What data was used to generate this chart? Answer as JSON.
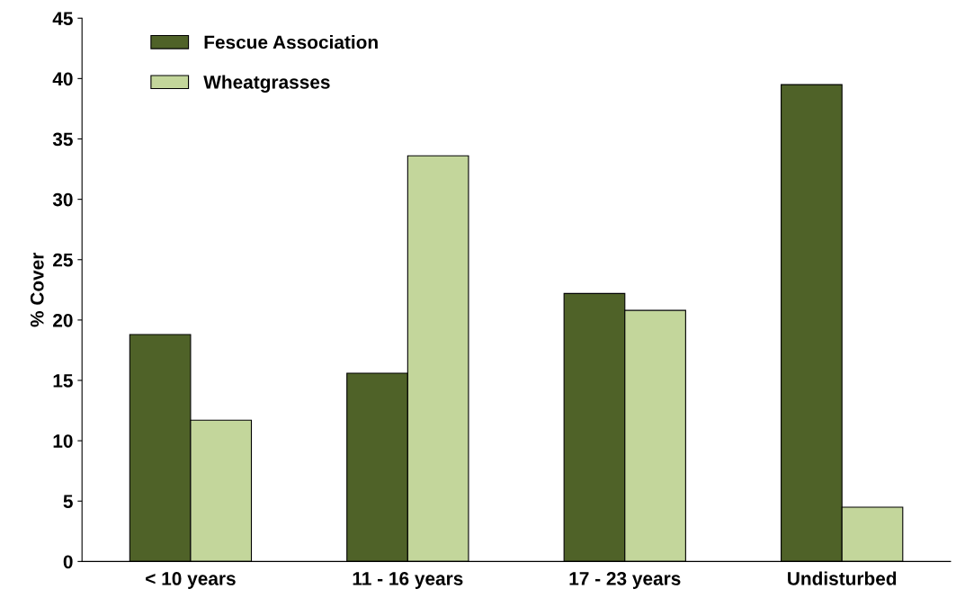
{
  "chart_data": {
    "type": "bar",
    "ylabel": "% Cover",
    "categories": [
      "< 10 years",
      "11 - 16 years",
      "17 - 23 years",
      "Undisturbed"
    ],
    "series": [
      {
        "name": "Fescue Association",
        "color": "#4f6228",
        "values": [
          18.8,
          15.6,
          22.2,
          39.5
        ]
      },
      {
        "name": "Wheatgrasses",
        "color": "#c3d69b",
        "values": [
          11.7,
          33.6,
          20.8,
          4.5
        ]
      }
    ],
    "ylim": [
      0,
      45
    ],
    "yticks": [
      0,
      5,
      10,
      15,
      20,
      25,
      30,
      35,
      40,
      45
    ],
    "grid": false,
    "legend": "top left"
  }
}
